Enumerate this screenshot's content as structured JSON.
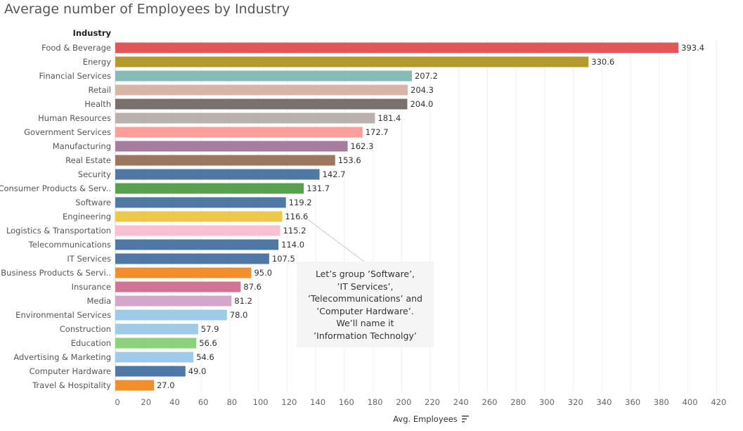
{
  "chart_data": {
    "type": "bar",
    "orientation": "horizontal",
    "title": "Average number of Employees by Industry",
    "row_header": "Industry",
    "xlabel": "Avg. Employees",
    "xlim": [
      0,
      430
    ],
    "xticks": [
      0,
      20,
      40,
      60,
      80,
      100,
      120,
      140,
      160,
      180,
      200,
      220,
      240,
      260,
      280,
      300,
      320,
      340,
      360,
      380,
      400,
      420
    ],
    "grid": true,
    "categories": [
      "Food & Beverage",
      "Energy",
      "Financial Services",
      "Retail",
      "Health",
      "Human Resources",
      "Government Services",
      "Manufacturing",
      "Real Estate",
      "Security",
      "Consumer Products & Serv..",
      "Software",
      "Engineering",
      "Logistics & Transportation",
      "Telecommunications",
      "IT Services",
      "Business Products & Servi..",
      "Insurance",
      "Media",
      "Environmental Services",
      "Construction",
      "Education",
      "Advertising & Marketing",
      "Computer Hardware",
      "Travel & Hospitality"
    ],
    "values": [
      393.4,
      330.6,
      207.2,
      204.3,
      204.0,
      181.4,
      172.7,
      162.3,
      153.6,
      142.7,
      131.7,
      119.2,
      116.6,
      115.2,
      114.0,
      107.5,
      95.0,
      87.6,
      81.2,
      78.0,
      57.9,
      56.6,
      54.6,
      49.0,
      27.0
    ],
    "value_labels": [
      "393.4",
      "330.6",
      "207.2",
      "204.3",
      "204.0",
      "181.4",
      "172.7",
      "162.3",
      "153.6",
      "142.7",
      "131.7",
      "119.2",
      "116.6",
      "115.2",
      "114.0",
      "107.5",
      "95.0",
      "87.6",
      "81.2",
      "78.0",
      "57.9",
      "56.6",
      "54.6",
      "49.0",
      "27.0"
    ],
    "colors": [
      "#e15759",
      "#b59a2e",
      "#86bcb6",
      "#d7b5a6",
      "#79706e",
      "#bab0ac",
      "#ff9d9a",
      "#a87c9f",
      "#9d7660",
      "#4e79a7",
      "#59a14f",
      "#4e79a7",
      "#edc948",
      "#fabfd2",
      "#4e79a7",
      "#4e79a7",
      "#f28e2b",
      "#d37295",
      "#d4a6c8",
      "#a0cbe8",
      "#a0cbe8",
      "#8cd17d",
      "#a0cbe8",
      "#4e79a7",
      "#f28e2b"
    ],
    "annotation": {
      "lines": [
        "Let’s group ’Software’,",
        "’IT Services’,",
        "’Telecommunications’ and",
        "’Computer Hardware’.",
        "We’ll name it",
        "’Information Technolgy’"
      ],
      "points_to": "Engineering"
    }
  }
}
